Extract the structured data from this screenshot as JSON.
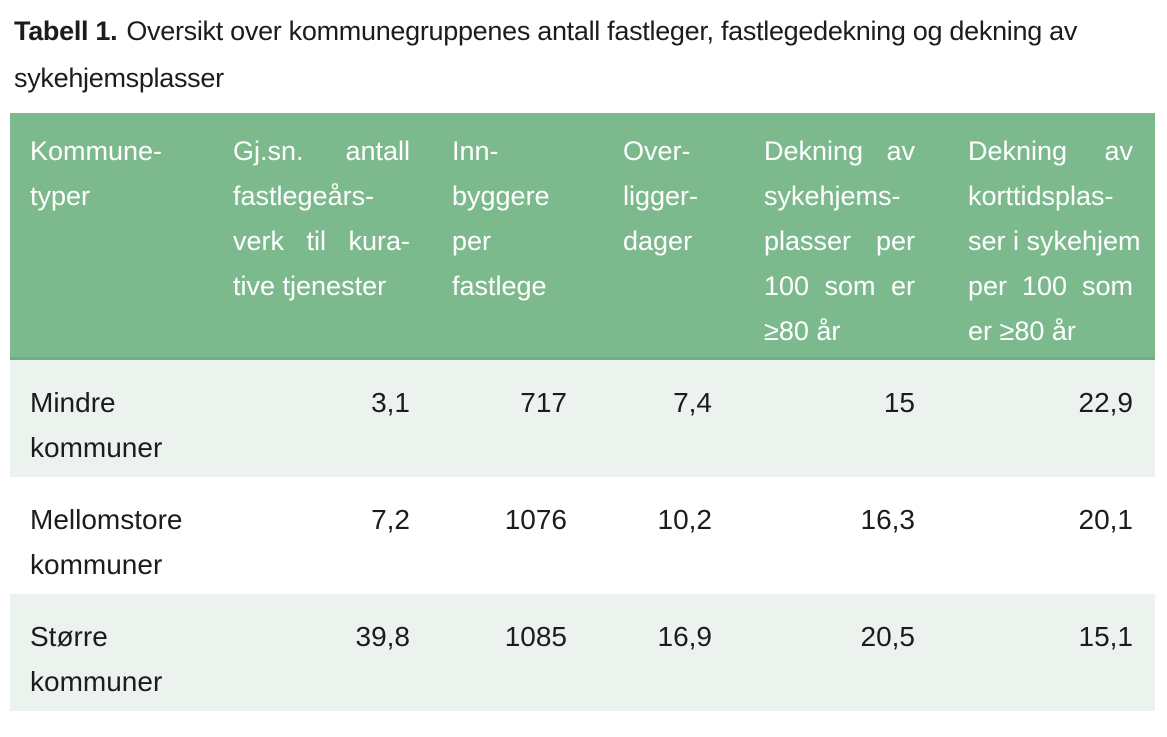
{
  "title": {
    "label": "Tabell 1.",
    "text": "Oversikt over kommunegruppenes antall fastleger, fastlegedekning og dekning av sykehjemsplasser"
  },
  "table": {
    "columns": [
      {
        "id": "kommunetyper",
        "lines": [
          "Kommune-",
          "typer"
        ]
      },
      {
        "id": "fastlegearsverk",
        "lines": [
          "Gj.sn. antall",
          "fastlegeårs-",
          "verk til kura-",
          "tive tjenester"
        ]
      },
      {
        "id": "innbyggere",
        "lines": [
          "Inn-",
          "byggere",
          "per",
          "fastlege"
        ]
      },
      {
        "id": "overliggerdager",
        "lines": [
          "Over-",
          "ligger-",
          "dager"
        ]
      },
      {
        "id": "sykehjemsdekning",
        "lines": [
          "Dekning av",
          "sykehjems-",
          "plasser per",
          "100 som er",
          "≥80 år"
        ]
      },
      {
        "id": "korttidsdekning",
        "lines": [
          "Dekning av",
          "korttidsplas-",
          "ser i sykehjem",
          "per 100 som",
          "er ≥80 år"
        ]
      }
    ],
    "rows": [
      {
        "name_lines": [
          "Mindre",
          "kommuner"
        ],
        "values": [
          "3,1",
          "717",
          "7,4",
          "15",
          "22,9"
        ]
      },
      {
        "name_lines": [
          "Mellomstore",
          "kommuner"
        ],
        "values": [
          "7,2",
          "1076",
          "10,2",
          "16,3",
          "20,1"
        ]
      },
      {
        "name_lines": [
          "Større",
          "kommuner"
        ],
        "values": [
          "39,8",
          "1085",
          "16,9",
          "20,5",
          "15,1"
        ]
      }
    ]
  },
  "colors": {
    "header_bg": "#7cba8e",
    "header_edge": "#6fae82",
    "row_alt_bg": "#ecf2ed",
    "header_text": "#ffffff",
    "body_text": "#1c1c1c"
  }
}
